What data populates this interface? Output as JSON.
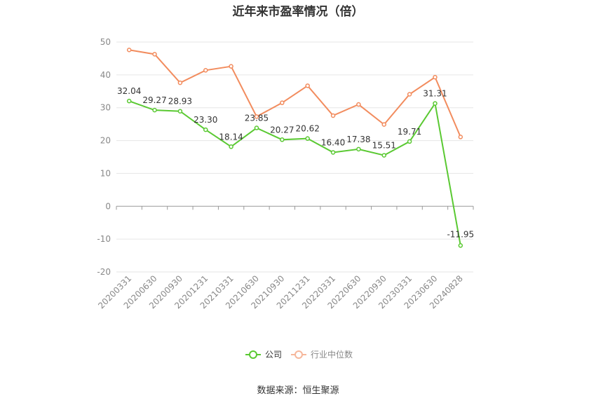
{
  "chart_data": {
    "type": "line",
    "title": "近年来市盈率情况（倍）",
    "categories": [
      "20200331",
      "20200630",
      "20200930",
      "20201231",
      "20210331",
      "20210630",
      "20210930",
      "20211231",
      "20220331",
      "20220630",
      "20220930",
      "20230331",
      "20230630",
      "20240828"
    ],
    "series": [
      {
        "name": "公司",
        "color": "#5ac932",
        "values": [
          32.04,
          29.27,
          28.93,
          23.3,
          18.14,
          23.85,
          20.27,
          20.62,
          16.4,
          17.38,
          15.51,
          19.71,
          31.31,
          -11.95
        ],
        "labels": [
          "32.04",
          "29.27",
          "28.93",
          "23.30",
          "18.14",
          "23.85",
          "20.27",
          "20.62",
          "16.40",
          "17.38",
          "15.51",
          "19.71",
          "31.31",
          "-11.95"
        ]
      },
      {
        "name": "行业中位数",
        "color": "#f28c5e",
        "values": [
          47.6,
          46.3,
          37.6,
          41.4,
          42.6,
          27.3,
          31.5,
          36.7,
          27.6,
          31.0,
          24.9,
          34.1,
          39.3,
          21.1
        ]
      }
    ],
    "ylim": [
      -20,
      50
    ],
    "yticks": [
      -20,
      -10,
      0,
      10,
      20,
      30,
      40,
      50
    ],
    "grid": true,
    "legend_position": "bottom-center"
  },
  "source_text": "数据来源：恒生聚源"
}
